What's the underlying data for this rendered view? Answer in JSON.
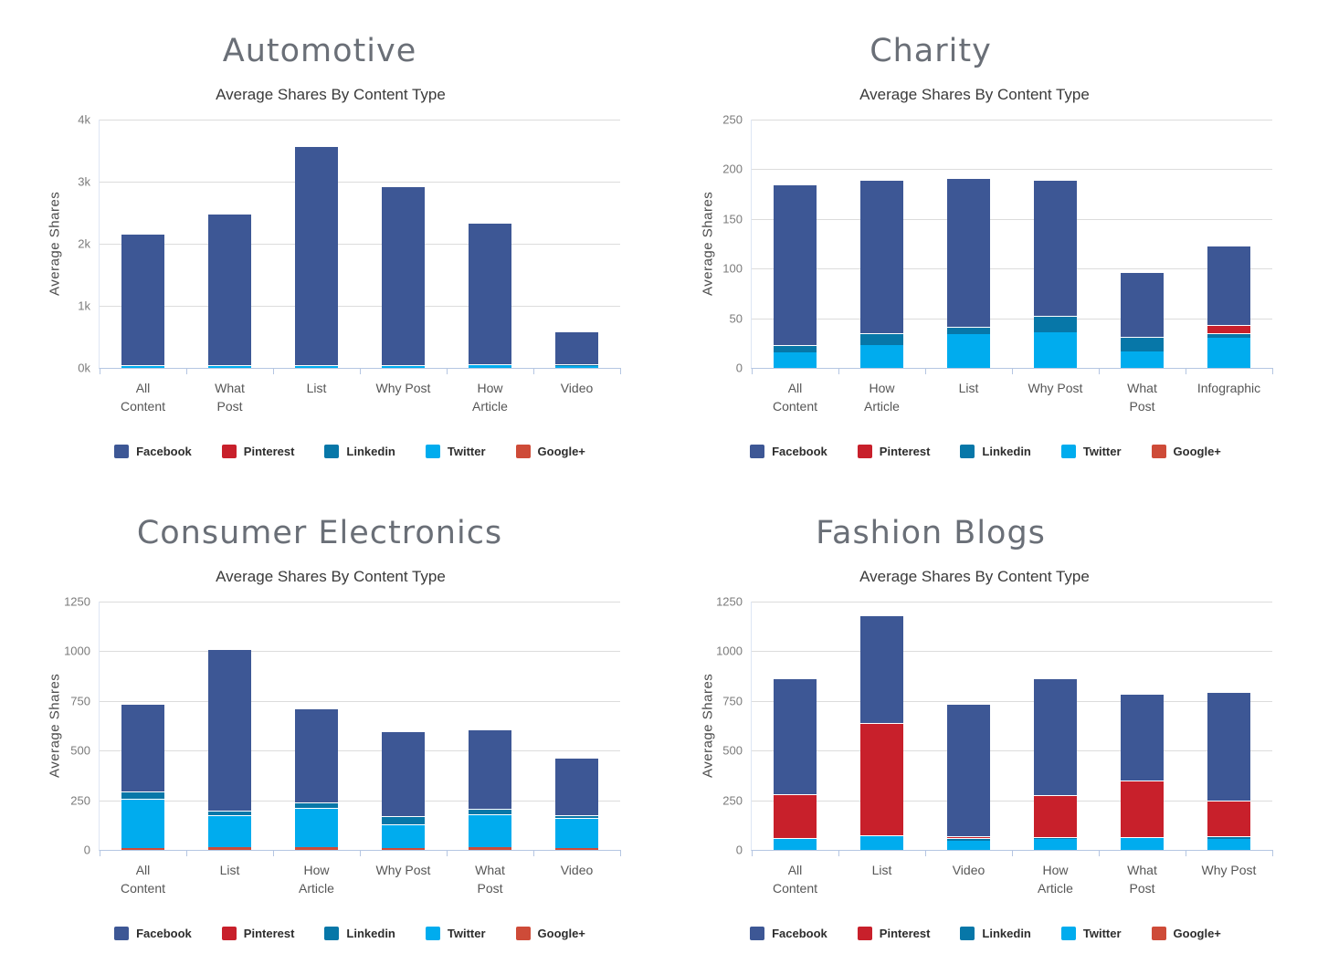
{
  "page": {
    "background": "#ffffff"
  },
  "series_colors": {
    "Facebook": "#3D5795",
    "Pinterest": "#C8202B",
    "Linkedin": "#0777A8",
    "Twitter": "#00ACEE",
    "Google+": "#CE4B38"
  },
  "stack_order_bottom_to_top": [
    "Google+",
    "Twitter",
    "Linkedin",
    "Pinterest",
    "Facebook"
  ],
  "chart_data": [
    {
      "type": "bar",
      "variant": "stacked",
      "title": "Automotive",
      "subtitle": "Average Shares By Content Type",
      "ylabel": "Average Shares",
      "xlabel": "",
      "ylim": [
        0,
        4000
      ],
      "grid": true,
      "legend_position": "bottom",
      "y_tick_labels_top_to_bottom": [
        "4k",
        "3k",
        "2k",
        "1k",
        "0k"
      ],
      "categories": [
        "All Content",
        "What Post",
        "List",
        "Why Post",
        "How Article",
        "Video"
      ],
      "category_label_lines": [
        [
          "All",
          "Content"
        ],
        [
          "What",
          "Post"
        ],
        [
          "List"
        ],
        [
          "Why Post"
        ],
        [
          "How",
          "Article"
        ],
        [
          "Video"
        ]
      ],
      "series": [
        {
          "name": "Google+",
          "values": [
            0,
            0,
            0,
            0,
            0,
            0
          ]
        },
        {
          "name": "Twitter",
          "values": [
            35,
            35,
            35,
            35,
            48,
            25
          ]
        },
        {
          "name": "Linkedin",
          "values": [
            6,
            6,
            6,
            6,
            8,
            30
          ]
        },
        {
          "name": "Pinterest",
          "values": [
            0,
            0,
            0,
            0,
            0,
            0
          ]
        },
        {
          "name": "Facebook",
          "values": [
            2119,
            2429,
            3529,
            2879,
            2274,
            535
          ]
        }
      ],
      "totals": [
        2160,
        2470,
        3570,
        2920,
        2330,
        590
      ],
      "legend": [
        "Facebook",
        "Pinterest",
        "Linkedin",
        "Twitter",
        "Google+"
      ]
    },
    {
      "type": "bar",
      "variant": "stacked",
      "title": "Charity",
      "subtitle": "Average Shares By Content Type",
      "ylabel": "Average Shares",
      "xlabel": "",
      "ylim": [
        0,
        250
      ],
      "grid": true,
      "legend_position": "bottom",
      "y_tick_labels_top_to_bottom": [
        "250",
        "200",
        "150",
        "100",
        "50",
        "0"
      ],
      "categories": [
        "All Content",
        "How Article",
        "List",
        "Why Post",
        "What Post",
        "Infographic"
      ],
      "category_label_lines": [
        [
          "All",
          "Content"
        ],
        [
          "How",
          "Article"
        ],
        [
          "List"
        ],
        [
          "Why Post"
        ],
        [
          "What",
          "Post"
        ],
        [
          "Infographic"
        ]
      ],
      "series": [
        {
          "name": "Google+",
          "values": [
            0,
            0,
            0,
            0,
            0,
            0
          ]
        },
        {
          "name": "Twitter",
          "values": [
            16,
            23,
            34,
            36,
            17,
            30
          ]
        },
        {
          "name": "Linkedin",
          "values": [
            7,
            12,
            7,
            16,
            14,
            5
          ]
        },
        {
          "name": "Pinterest",
          "values": [
            0,
            0,
            0,
            0,
            0,
            8
          ]
        },
        {
          "name": "Facebook",
          "values": [
            162,
            154,
            150,
            137,
            66,
            80
          ]
        }
      ],
      "totals": [
        185,
        189,
        191,
        189,
        97,
        123
      ],
      "legend": [
        "Facebook",
        "Pinterest",
        "Linkedin",
        "Twitter",
        "Google+"
      ]
    },
    {
      "type": "bar",
      "variant": "stacked",
      "title": "Consumer Electronics",
      "subtitle": "Average Shares By Content Type",
      "ylabel": "Average Shares",
      "xlabel": "",
      "ylim": [
        0,
        1250
      ],
      "grid": true,
      "legend_position": "bottom",
      "y_tick_labels_top_to_bottom": [
        "1250",
        "1000",
        "750",
        "500",
        "250",
        "0"
      ],
      "categories": [
        "All Content",
        "List",
        "How Article",
        "Why Post",
        "What Post",
        "Video"
      ],
      "category_label_lines": [
        [
          "All",
          "Content"
        ],
        [
          "List"
        ],
        [
          "How",
          "Article"
        ],
        [
          "Why Post"
        ],
        [
          "What",
          "Post"
        ],
        [
          "Video"
        ]
      ],
      "series": [
        {
          "name": "Google+",
          "values": [
            10,
            13,
            13,
            8,
            13,
            8
          ]
        },
        {
          "name": "Twitter",
          "values": [
            248,
            160,
            200,
            122,
            167,
            152
          ]
        },
        {
          "name": "Linkedin",
          "values": [
            36,
            25,
            28,
            40,
            25,
            15
          ]
        },
        {
          "name": "Pinterest",
          "values": [
            0,
            0,
            0,
            0,
            0,
            0
          ]
        },
        {
          "name": "Facebook",
          "values": [
            441,
            815,
            470,
            428,
            400,
            290
          ]
        }
      ],
      "totals": [
        735,
        1013,
        711,
        598,
        605,
        465
      ],
      "legend": [
        "Facebook",
        "Pinterest",
        "Linkedin",
        "Twitter",
        "Google+"
      ]
    },
    {
      "type": "bar",
      "variant": "stacked",
      "title": "Fashion Blogs",
      "subtitle": "Average Shares By Content Type",
      "ylabel": "Average Shares",
      "xlabel": "",
      "ylim": [
        0,
        1250
      ],
      "grid": true,
      "legend_position": "bottom",
      "y_tick_labels_top_to_bottom": [
        "1250",
        "1000",
        "750",
        "500",
        "250",
        "0"
      ],
      "categories": [
        "All Content",
        "List",
        "Video",
        "How Article",
        "What Post",
        "Why Post"
      ],
      "category_label_lines": [
        [
          "All",
          "Content"
        ],
        [
          "List"
        ],
        [
          "Video"
        ],
        [
          "How",
          "Article"
        ],
        [
          "What",
          "Post"
        ],
        [
          "Why Post"
        ]
      ],
      "series": [
        {
          "name": "Google+",
          "values": [
            0,
            0,
            0,
            0,
            0,
            0
          ]
        },
        {
          "name": "Twitter",
          "values": [
            55,
            70,
            45,
            57,
            58,
            55
          ]
        },
        {
          "name": "Linkedin",
          "values": [
            5,
            5,
            14,
            8,
            4,
            14
          ]
        },
        {
          "name": "Pinterest",
          "values": [
            222,
            565,
            12,
            212,
            288,
            181
          ]
        },
        {
          "name": "Facebook",
          "values": [
            583,
            540,
            664,
            588,
            435,
            545
          ]
        }
      ],
      "totals": [
        865,
        1180,
        735,
        865,
        785,
        795
      ],
      "legend": [
        "Facebook",
        "Pinterest",
        "Linkedin",
        "Twitter",
        "Google+"
      ]
    }
  ]
}
